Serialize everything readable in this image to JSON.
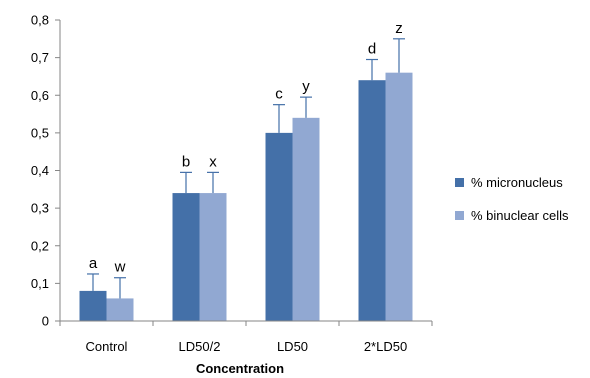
{
  "chart_data": {
    "type": "bar",
    "title": "",
    "xlabel": "Concentration",
    "ylabel": "",
    "ylim": [
      0,
      0.8
    ],
    "yticks": [
      0,
      0.1,
      0.2,
      0.3,
      0.4,
      0.5,
      0.6,
      0.7,
      0.8
    ],
    "ytick_labels": [
      "0",
      "0,1",
      "0,2",
      "0,3",
      "0,4",
      "0,5",
      "0,6",
      "0,7",
      "0,8"
    ],
    "categories": [
      "Control",
      "LD50/2",
      "LD50",
      "2*LD50"
    ],
    "series": [
      {
        "name": "% micronucleus",
        "color": "#4470a8",
        "values": [
          0.08,
          0.34,
          0.5,
          0.64
        ],
        "error_plus": [
          0.045,
          0.055,
          0.075,
          0.055
        ],
        "annotations": [
          "a",
          "b",
          "c",
          "d"
        ]
      },
      {
        "name": "% binuclear cells",
        "color": "#91a8d2",
        "values": [
          0.06,
          0.34,
          0.54,
          0.66
        ],
        "error_plus": [
          0.055,
          0.055,
          0.055,
          0.09
        ],
        "annotations": [
          "w",
          "x",
          "y",
          "z"
        ]
      }
    ],
    "error_bar_color": "#4470a8",
    "grid": false,
    "legend_position": "right"
  }
}
